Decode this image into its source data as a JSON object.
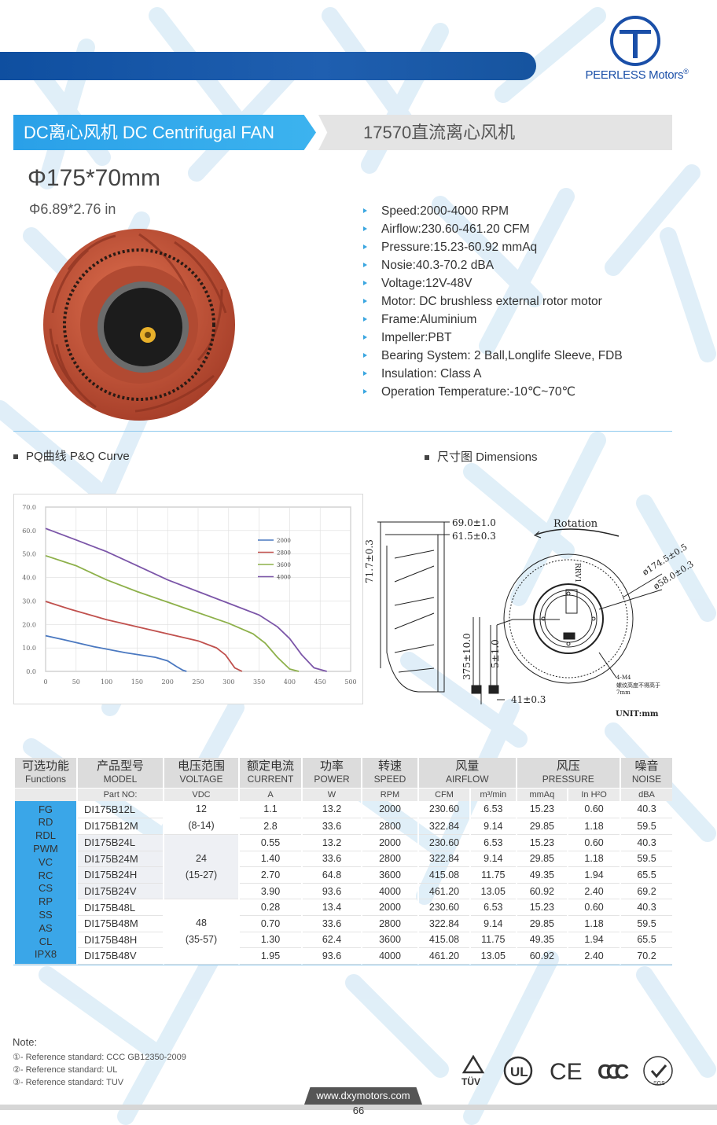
{
  "brand": {
    "name": "PEERLESS Motors",
    "mark": "®"
  },
  "header": {
    "left_title": "DC离心风机 DC Centrifugal FAN",
    "right_title": "17570直流离心风机",
    "size_mm": "Φ175*70mm",
    "size_in": "Φ6.89*2.76 in"
  },
  "specs": [
    "Speed:2000-4000 RPM",
    "Airflow:230.60-461.20 CFM",
    "Pressure:15.23-60.92 mmAq",
    "Nosie:40.3-70.2 dBA",
    "Voltage:12V-48V",
    "Motor: DC brushless external rotor motor",
    "Frame:Aluminium",
    "Impeller:PBT",
    "Bearing System: 2 Ball,Longlife Sleeve, FDB",
    "Insulation: Class A",
    "Operation Temperature:-10℃~70℃"
  ],
  "sections": {
    "pq": "PQ曲线  P&Q Curve",
    "dim": "尺寸图 Dimensions"
  },
  "chart_data": {
    "type": "line",
    "title": "",
    "xlabel": "",
    "ylabel": "",
    "xlim": [
      0,
      500
    ],
    "ylim": [
      0,
      70
    ],
    "x_ticks": [
      "0",
      "50",
      "100",
      "150",
      "200",
      "250",
      "300",
      "350",
      "400",
      "450",
      "500"
    ],
    "y_ticks": [
      "0.0",
      "10.0",
      "20.0",
      "30.0",
      "40.0",
      "50.0",
      "60.0",
      "70.0"
    ],
    "grid": true,
    "legend_position": "top-right",
    "series": [
      {
        "name": "2000",
        "color": "#4a78c0",
        "x": [
          0,
          30,
          80,
          130,
          180,
          200,
          215,
          225,
          231
        ],
        "y": [
          15.2,
          13.5,
          10.5,
          8,
          6,
          4.5,
          2,
          0.5,
          0
        ]
      },
      {
        "name": "2800",
        "color": "#c0504d",
        "x": [
          0,
          40,
          100,
          150,
          200,
          250,
          280,
          295,
          310,
          322
        ],
        "y": [
          29.8,
          26.5,
          22,
          19,
          16,
          13,
          10,
          7,
          1.5,
          0
        ]
      },
      {
        "name": "3600",
        "color": "#8db04a",
        "x": [
          0,
          50,
          100,
          150,
          200,
          250,
          300,
          340,
          360,
          380,
          400,
          415
        ],
        "y": [
          49.3,
          45,
          39,
          34,
          29.5,
          25,
          20.5,
          16,
          12,
          6,
          1,
          0
        ]
      },
      {
        "name": "4000",
        "color": "#7b55a8",
        "x": [
          0,
          50,
          100,
          150,
          200,
          250,
          300,
          350,
          380,
          400,
          420,
          440,
          461
        ],
        "y": [
          60.9,
          56,
          51,
          45,
          39,
          34,
          29,
          24,
          19,
          14,
          7,
          1.5,
          0
        ]
      }
    ]
  },
  "dimensions": {
    "d1": "69.0±1.0",
    "d2": "61.5±0.3",
    "d3": "71.7±0.3",
    "d4": "375±10.0",
    "d5": "5±1.0",
    "d6": "41±0.3",
    "rotation": "Rotation",
    "dia1": "ø174.5±0.5",
    "dia2": "ø58.0±0.3",
    "screw": "4-M4",
    "screw_note1": "螺纹高度不得高于",
    "screw_note2": "7mm",
    "unit": "UNIT:mm",
    "label_text": "RRV1"
  },
  "table": {
    "headers": [
      {
        "cn": "可选功能",
        "en": "Functions"
      },
      {
        "cn": "产品型号",
        "en": "MODEL"
      },
      {
        "cn": "电压范围",
        "en": "VOLTAGE"
      },
      {
        "cn": "额定电流",
        "en": "CURRENT"
      },
      {
        "cn": "功率",
        "en": "POWER"
      },
      {
        "cn": "转速",
        "en": "SPEED"
      },
      {
        "cn": "风量",
        "en": "AIRFLOW"
      },
      {
        "cn": "风压",
        "en": "PRESSURE"
      },
      {
        "cn": "噪音",
        "en": "NOISE"
      }
    ],
    "units": [
      "Part NO:",
      "VDC",
      "A",
      "W",
      "RPM",
      "CFM",
      "m³/min",
      "mmAq",
      "In H²O",
      "dBA"
    ],
    "functions": [
      "FG",
      "RD",
      "RDL",
      "PWM",
      "VC",
      "RC",
      "CS",
      "RP",
      "SS",
      "AS",
      "CL",
      "IPX8"
    ],
    "voltage_groups": [
      {
        "v": "12",
        "range": "(8-14)"
      },
      {
        "v": "24",
        "range": "(15-27)"
      },
      {
        "v": "48",
        "range": "(35-57)"
      }
    ],
    "rows": [
      [
        "DI175B12L",
        "1.1",
        "13.2",
        "2000",
        "230.60",
        "6.53",
        "15.23",
        "0.60",
        "40.3"
      ],
      [
        "DI175B12M",
        "2.8",
        "33.6",
        "2800",
        "322.84",
        "9.14",
        "29.85",
        "1.18",
        "59.5"
      ],
      [
        "DI175B24L",
        "0.55",
        "13.2",
        "2000",
        "230.60",
        "6.53",
        "15.23",
        "0.60",
        "40.3"
      ],
      [
        "DI175B24M",
        "1.40",
        "33.6",
        "2800",
        "322.84",
        "9.14",
        "29.85",
        "1.18",
        "59.5"
      ],
      [
        "DI175B24H",
        "2.70",
        "64.8",
        "3600",
        "415.08",
        "11.75",
        "49.35",
        "1.94",
        "65.5"
      ],
      [
        "DI175B24V",
        "3.90",
        "93.6",
        "4000",
        "461.20",
        "13.05",
        "60.92",
        "2.40",
        "69.2"
      ],
      [
        "DI175B48L",
        "0.28",
        "13.4",
        "2000",
        "230.60",
        "6.53",
        "15.23",
        "0.60",
        "40.3"
      ],
      [
        "DI175B48M",
        "0.70",
        "33.6",
        "2800",
        "322.84",
        "9.14",
        "29.85",
        "1.18",
        "59.5"
      ],
      [
        "DI175B48H",
        "1.30",
        "62.4",
        "3600",
        "415.08",
        "11.75",
        "49.35",
        "1.94",
        "65.5"
      ],
      [
        "DI175B48V",
        "1.95",
        "93.6",
        "4000",
        "461.20",
        "13.05",
        "60.92",
        "2.40",
        "70.2"
      ]
    ]
  },
  "notes": {
    "title": "Note:",
    "items": [
      "①- Reference standard: CCC GB12350-2009",
      "②- Reference standard: UL",
      "③- Reference standard: TUV"
    ]
  },
  "certifications": [
    "TÜV",
    "UL",
    "CE",
    "CCC",
    "SGS"
  ],
  "footer": {
    "url": "www.dxymotors.com",
    "page": "66"
  },
  "colors": {
    "accent": "#3aa6e8",
    "brand_blue": "#1a4fa8",
    "impeller": "#c8553a"
  }
}
